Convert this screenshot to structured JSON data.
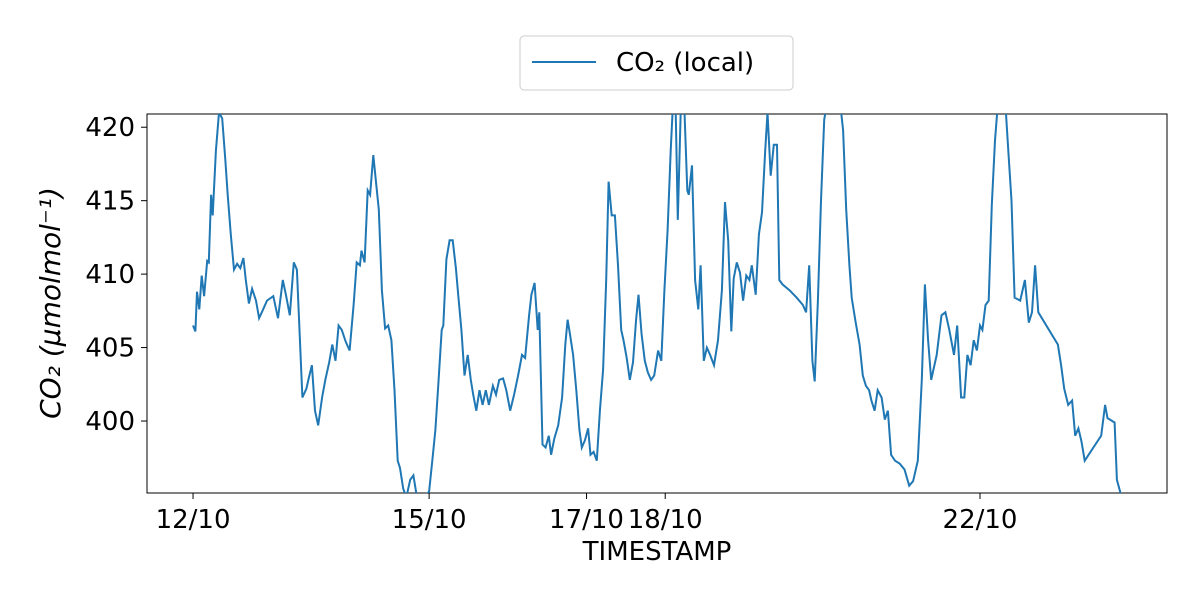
{
  "chart_data": {
    "type": "line",
    "xlabel": "TIMESTAMP",
    "ylabel": "CO₂ (μmolmol⁻¹)",
    "xlim": [
      11.415,
      24.376
    ],
    "xticks": [
      {
        "value": 12,
        "label": "12/10"
      },
      {
        "value": 15,
        "label": "15/10"
      },
      {
        "value": 17,
        "label": "17/10"
      },
      {
        "value": 18,
        "label": "18/10"
      },
      {
        "value": 22,
        "label": "22/10"
      }
    ],
    "ylim": [
      395.1,
      420.9
    ],
    "yticks": [
      400,
      405,
      410,
      415,
      420
    ],
    "legend": "upper center",
    "x": [
      12.0,
      12.03,
      12.05,
      12.08,
      12.11,
      12.14,
      12.18,
      12.2,
      12.23,
      12.25,
      12.29,
      12.33,
      12.37,
      12.41,
      12.44,
      12.48,
      12.52,
      12.56,
      12.6,
      12.64,
      12.67,
      12.71,
      12.75,
      12.8,
      12.84,
      12.89,
      12.94,
      13.02,
      13.08,
      13.14,
      13.18,
      13.23,
      13.28,
      13.32,
      13.39,
      13.44,
      13.47,
      13.51,
      13.55,
      13.59,
      13.64,
      13.68,
      13.73,
      13.77,
      13.81,
      13.85,
      13.89,
      13.94,
      13.99,
      14.04,
      14.08,
      14.12,
      14.14,
      14.18,
      14.22,
      14.25,
      14.29,
      14.33,
      14.36,
      14.4,
      14.44,
      14.48,
      14.52,
      14.56,
      14.6,
      14.63,
      14.67,
      14.71,
      14.76,
      14.8,
      14.84,
      14.9,
      15.0,
      15.04,
      15.08,
      15.12,
      15.16,
      15.18,
      15.22,
      15.26,
      15.3,
      15.34,
      15.37,
      15.41,
      15.45,
      15.49,
      15.53,
      15.56,
      15.6,
      15.64,
      15.68,
      15.72,
      15.76,
      15.81,
      15.85,
      15.89,
      15.94,
      15.98,
      16.03,
      16.08,
      16.13,
      16.18,
      16.22,
      16.27,
      16.3,
      16.34,
      16.38,
      16.4,
      16.44,
      16.48,
      16.52,
      16.55,
      16.59,
      16.64,
      16.69,
      16.73,
      16.76,
      16.79,
      16.83,
      16.87,
      16.91,
      16.94,
      16.98,
      17.02,
      17.05,
      17.09,
      17.13,
      17.17,
      17.21,
      17.25,
      17.28,
      17.32,
      17.36,
      17.4,
      17.44,
      17.47,
      17.51,
      17.55,
      17.59,
      17.63,
      17.66,
      17.7,
      17.74,
      17.78,
      17.82,
      17.86,
      17.91,
      17.95,
      17.99,
      18.03,
      18.07,
      18.1,
      18.13,
      18.16,
      18.2,
      18.24,
      18.28,
      18.3,
      18.34,
      18.38,
      18.42,
      18.45,
      18.49,
      18.53,
      18.57,
      18.62,
      18.67,
      18.72,
      18.76,
      18.8,
      18.84,
      18.87,
      18.91,
      18.95,
      18.99,
      19.03,
      19.07,
      19.1,
      19.15,
      19.19,
      19.23,
      19.27,
      19.3,
      19.34,
      19.38,
      19.42,
      19.45,
      19.49,
      19.58,
      19.67,
      19.75,
      19.79,
      19.83,
      19.87,
      19.9,
      19.94,
      19.98,
      20.02,
      20.06,
      20.22,
      20.26,
      20.3,
      20.34,
      20.37,
      20.42,
      20.47,
      20.51,
      20.55,
      20.59,
      20.62,
      20.66,
      20.7,
      20.75,
      20.79,
      20.83,
      20.87,
      20.92,
      20.98,
      21.04,
      21.1,
      21.15,
      21.21,
      21.26,
      21.3,
      21.34,
      21.38,
      21.45,
      21.51,
      21.56,
      21.61,
      21.67,
      21.71,
      21.76,
      21.8,
      21.84,
      21.88,
      21.92,
      21.96,
      22.0,
      22.03,
      22.07,
      22.11,
      22.15,
      22.19,
      22.23,
      22.32,
      22.36,
      22.4,
      22.44,
      22.51,
      22.57,
      22.62,
      22.66,
      22.7,
      22.74,
      22.99,
      23.03,
      23.07,
      23.12,
      23.17,
      23.21,
      23.25,
      23.29,
      23.33,
      23.54,
      23.59,
      23.62,
      23.71,
      23.74,
      23.79
    ],
    "series": [
      {
        "name": "CO₂ (local)",
        "color": "#1f77b4",
        "values": [
          406.5,
          406.1,
          408.8,
          407.6,
          409.9,
          408.5,
          410.9,
          410.8,
          415.4,
          414.0,
          418.4,
          421.0,
          420.6,
          417.8,
          415.4,
          412.7,
          410.3,
          410.7,
          410.4,
          411.1,
          409.6,
          408.0,
          409.0,
          408.2,
          407.0,
          407.6,
          408.2,
          408.5,
          407.0,
          409.6,
          408.6,
          407.2,
          410.8,
          410.3,
          401.6,
          402.2,
          402.9,
          403.8,
          400.7,
          399.7,
          401.6,
          402.8,
          404.0,
          405.2,
          404.1,
          406.5,
          406.2,
          405.4,
          404.8,
          407.9,
          410.8,
          410.6,
          411.6,
          410.8,
          415.7,
          415.4,
          418.1,
          416.0,
          414.4,
          408.9,
          406.3,
          406.5,
          405.5,
          402.1,
          397.3,
          396.8,
          395.4,
          394.8,
          396.0,
          396.3,
          395.0,
          394.6,
          395.2,
          397.3,
          399.4,
          402.8,
          406.2,
          406.5,
          411.0,
          412.3,
          412.3,
          410.4,
          408.6,
          406.2,
          403.1,
          404.5,
          402.8,
          401.8,
          400.7,
          402.1,
          401.1,
          402.1,
          401.1,
          402.4,
          401.8,
          402.8,
          402.9,
          402.1,
          400.7,
          401.8,
          403.1,
          404.5,
          404.3,
          407.2,
          408.6,
          409.4,
          406.2,
          407.4,
          398.4,
          398.2,
          399.0,
          397.7,
          398.8,
          399.7,
          401.6,
          405.2,
          406.9,
          405.9,
          404.5,
          402.1,
          399.4,
          398.2,
          398.7,
          399.5,
          397.7,
          397.9,
          397.3,
          400.7,
          403.5,
          409.6,
          416.3,
          414.0,
          414.0,
          410.6,
          406.2,
          405.5,
          404.3,
          402.8,
          404.0,
          406.9,
          408.6,
          405.9,
          404.1,
          403.3,
          402.8,
          403.1,
          404.8,
          404.1,
          408.9,
          413.0,
          418.4,
          421.8,
          421.8,
          413.7,
          421.8,
          421.8,
          415.7,
          415.4,
          417.4,
          409.6,
          407.6,
          410.6,
          404.1,
          405.0,
          404.5,
          403.8,
          405.5,
          408.9,
          414.9,
          412.3,
          406.1,
          409.7,
          410.8,
          410.1,
          408.2,
          409.9,
          409.6,
          410.6,
          408.6,
          412.7,
          414.2,
          418.4,
          421.0,
          416.7,
          418.8,
          418.8,
          409.6,
          409.3,
          408.9,
          408.4,
          407.9,
          407.4,
          410.6,
          404.1,
          402.7,
          408.2,
          415.0,
          420.5,
          421.8,
          421.8,
          419.8,
          414.4,
          410.6,
          408.4,
          406.7,
          405.2,
          403.1,
          402.4,
          402.1,
          401.4,
          400.7,
          402.1,
          401.6,
          400.1,
          400.7,
          397.7,
          397.3,
          397.1,
          396.7,
          395.6,
          395.9,
          397.3,
          402.8,
          409.3,
          405.5,
          402.8,
          404.5,
          407.2,
          407.4,
          406.2,
          404.5,
          406.5,
          401.6,
          401.6,
          404.5,
          403.8,
          405.5,
          404.8,
          406.5,
          406.2,
          407.9,
          408.2,
          414.7,
          419.1,
          421.8,
          421.8,
          418.4,
          415.0,
          408.4,
          408.2,
          409.6,
          406.7,
          407.4,
          410.6,
          407.4,
          405.2,
          403.8,
          402.2,
          401.1,
          401.4,
          399.0,
          399.5,
          398.6,
          397.3,
          399.0,
          401.1,
          400.2,
          399.9,
          396.0,
          395.0
        ]
      }
    ]
  }
}
